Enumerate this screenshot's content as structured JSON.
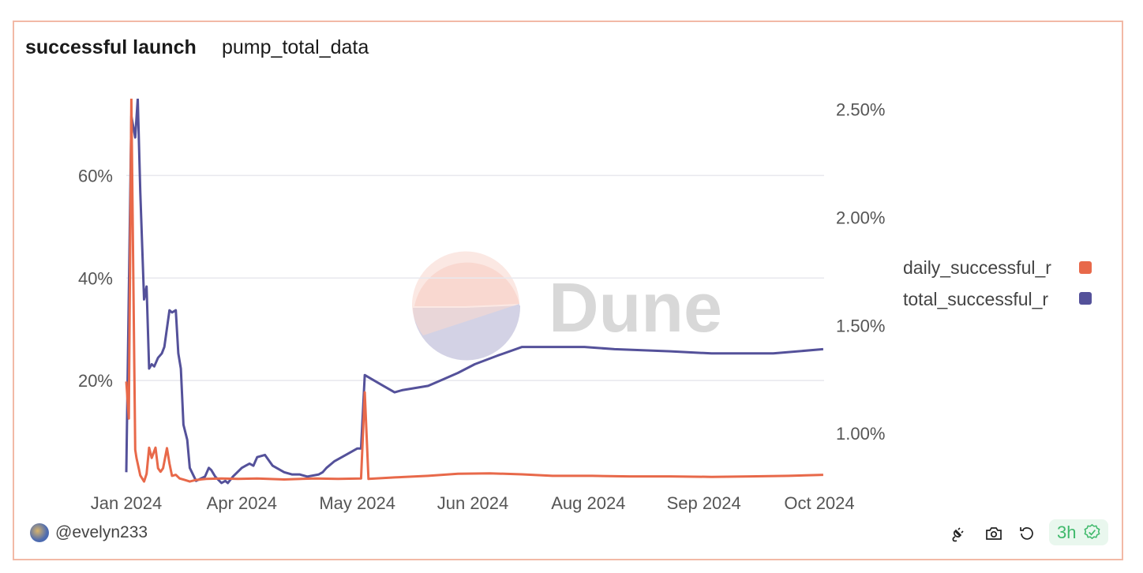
{
  "header": {
    "title": "successful launch",
    "subtitle": "pump_total_data"
  },
  "footer": {
    "author": "@evelyn233",
    "freshness": "3h",
    "icons": [
      "plug-icon",
      "camera-icon",
      "refresh-icon",
      "verified-badge-icon"
    ]
  },
  "watermark": "Dune",
  "colors": {
    "daily": "#e8694a",
    "total": "#54519a",
    "grid": "#e8e8ee",
    "border": "#f2b9a6"
  },
  "chart_data": {
    "type": "line",
    "x_tick_labels": [
      "Jan 2024",
      "Apr 2024",
      "May 2024",
      "Jun 2024",
      "Aug 2024",
      "Sep 2024",
      "Oct 2024"
    ],
    "x_tick_dates": [
      "2024-01-01",
      "2024-04-01",
      "2024-05-01",
      "2024-06-01",
      "2024-08-01",
      "2024-09-01",
      "2024-10-01"
    ],
    "left_axis": {
      "ticks": [
        "20%",
        "40%",
        "60%"
      ],
      "tick_values": [
        20,
        40,
        60
      ],
      "ylim": [
        0,
        75
      ]
    },
    "right_axis": {
      "ticks": [
        "1.00%",
        "1.50%",
        "2.00%",
        "2.50%"
      ],
      "tick_values": [
        1.0,
        1.5,
        2.0,
        2.5
      ],
      "ylim": [
        0.77,
        2.55
      ]
    },
    "grid": true,
    "legend_position": "right",
    "series": [
      {
        "name": "daily_successful_r",
        "axis": "left",
        "color": "#e8694a",
        "x": [
          "2024-01-01",
          "2024-01-03",
          "2024-01-05",
          "2024-01-08",
          "2024-01-09",
          "2024-01-12",
          "2024-01-15",
          "2024-01-17",
          "2024-01-19",
          "2024-01-21",
          "2024-01-24",
          "2024-01-26",
          "2024-01-28",
          "2024-01-30",
          "2024-02-02",
          "2024-02-04",
          "2024-02-06",
          "2024-02-09",
          "2024-02-12",
          "2024-02-16",
          "2024-02-20",
          "2024-02-25",
          "2024-03-04",
          "2024-03-16",
          "2024-03-29",
          "2024-04-05",
          "2024-04-12",
          "2024-04-20",
          "2024-04-26",
          "2024-05-02",
          "2024-05-03",
          "2024-05-04",
          "2024-05-11",
          "2024-05-20",
          "2024-05-28",
          "2024-06-10",
          "2024-06-27",
          "2024-07-13",
          "2024-08-02",
          "2024-08-12",
          "2024-08-23",
          "2024-09-03",
          "2024-09-13",
          "2024-09-23",
          "2024-10-02"
        ],
        "y": [
          19.8,
          12.6,
          75,
          6.5,
          4.9,
          1.5,
          0.3,
          1.8,
          6.9,
          4.9,
          6.9,
          2.9,
          2.2,
          2.9,
          6.8,
          3.8,
          1.4,
          1.6,
          0.9,
          0.6,
          0.3,
          0.6,
          0.8,
          0.9,
          0.8,
          0.9,
          0.7,
          0.9,
          0.8,
          0.9,
          17.7,
          0.8,
          1.1,
          1.4,
          1.8,
          1.9,
          1.7,
          1.4,
          1.4,
          1.3,
          1.3,
          1.2,
          1.3,
          1.4,
          1.6
        ]
      },
      {
        "name": "total_successful_r",
        "axis": "right",
        "color": "#54519a",
        "x": [
          "2024-01-01",
          "2024-01-05",
          "2024-01-08",
          "2024-01-10",
          "2024-01-12",
          "2024-01-15",
          "2024-01-17",
          "2024-01-19",
          "2024-01-21",
          "2024-01-23",
          "2024-01-26",
          "2024-01-29",
          "2024-01-31",
          "2024-02-04",
          "2024-02-06",
          "2024-02-09",
          "2024-02-11",
          "2024-02-13",
          "2024-02-15",
          "2024-02-18",
          "2024-02-20",
          "2024-02-25",
          "2024-03-03",
          "2024-03-06",
          "2024-03-08",
          "2024-03-11",
          "2024-03-16",
          "2024-03-19",
          "2024-03-21",
          "2024-03-25",
          "2024-04-01",
          "2024-04-02",
          "2024-04-03",
          "2024-04-04",
          "2024-04-05",
          "2024-04-07",
          "2024-04-09",
          "2024-04-12",
          "2024-04-14",
          "2024-04-16",
          "2024-04-18",
          "2024-04-21",
          "2024-04-22",
          "2024-04-23",
          "2024-04-25",
          "2024-04-28",
          "2024-05-01",
          "2024-05-02",
          "2024-05-03",
          "2024-05-05",
          "2024-05-08",
          "2024-05-11",
          "2024-05-13",
          "2024-05-20",
          "2024-05-24",
          "2024-05-28",
          "2024-06-02",
          "2024-06-14",
          "2024-06-27",
          "2024-07-13",
          "2024-07-30",
          "2024-08-08",
          "2024-08-23",
          "2024-09-03",
          "2024-09-11",
          "2024-09-19",
          "2024-10-02"
        ],
        "y": [
          0.82,
          2.47,
          2.37,
          2.55,
          2.12,
          1.62,
          1.68,
          1.3,
          1.32,
          1.31,
          1.35,
          1.37,
          1.4,
          1.57,
          1.56,
          1.57,
          1.37,
          1.3,
          1.04,
          0.97,
          0.84,
          0.78,
          0.8,
          0.84,
          0.83,
          0.8,
          0.77,
          0.78,
          0.77,
          0.8,
          0.84,
          0.85,
          0.86,
          0.85,
          0.89,
          0.9,
          0.85,
          0.82,
          0.81,
          0.81,
          0.8,
          0.81,
          0.82,
          0.84,
          0.87,
          0.9,
          0.93,
          0.93,
          1.27,
          1.25,
          1.22,
          1.19,
          1.2,
          1.22,
          1.25,
          1.28,
          1.32,
          1.36,
          1.4,
          1.4,
          1.4,
          1.39,
          1.38,
          1.37,
          1.37,
          1.37,
          1.39
        ]
      }
    ]
  }
}
